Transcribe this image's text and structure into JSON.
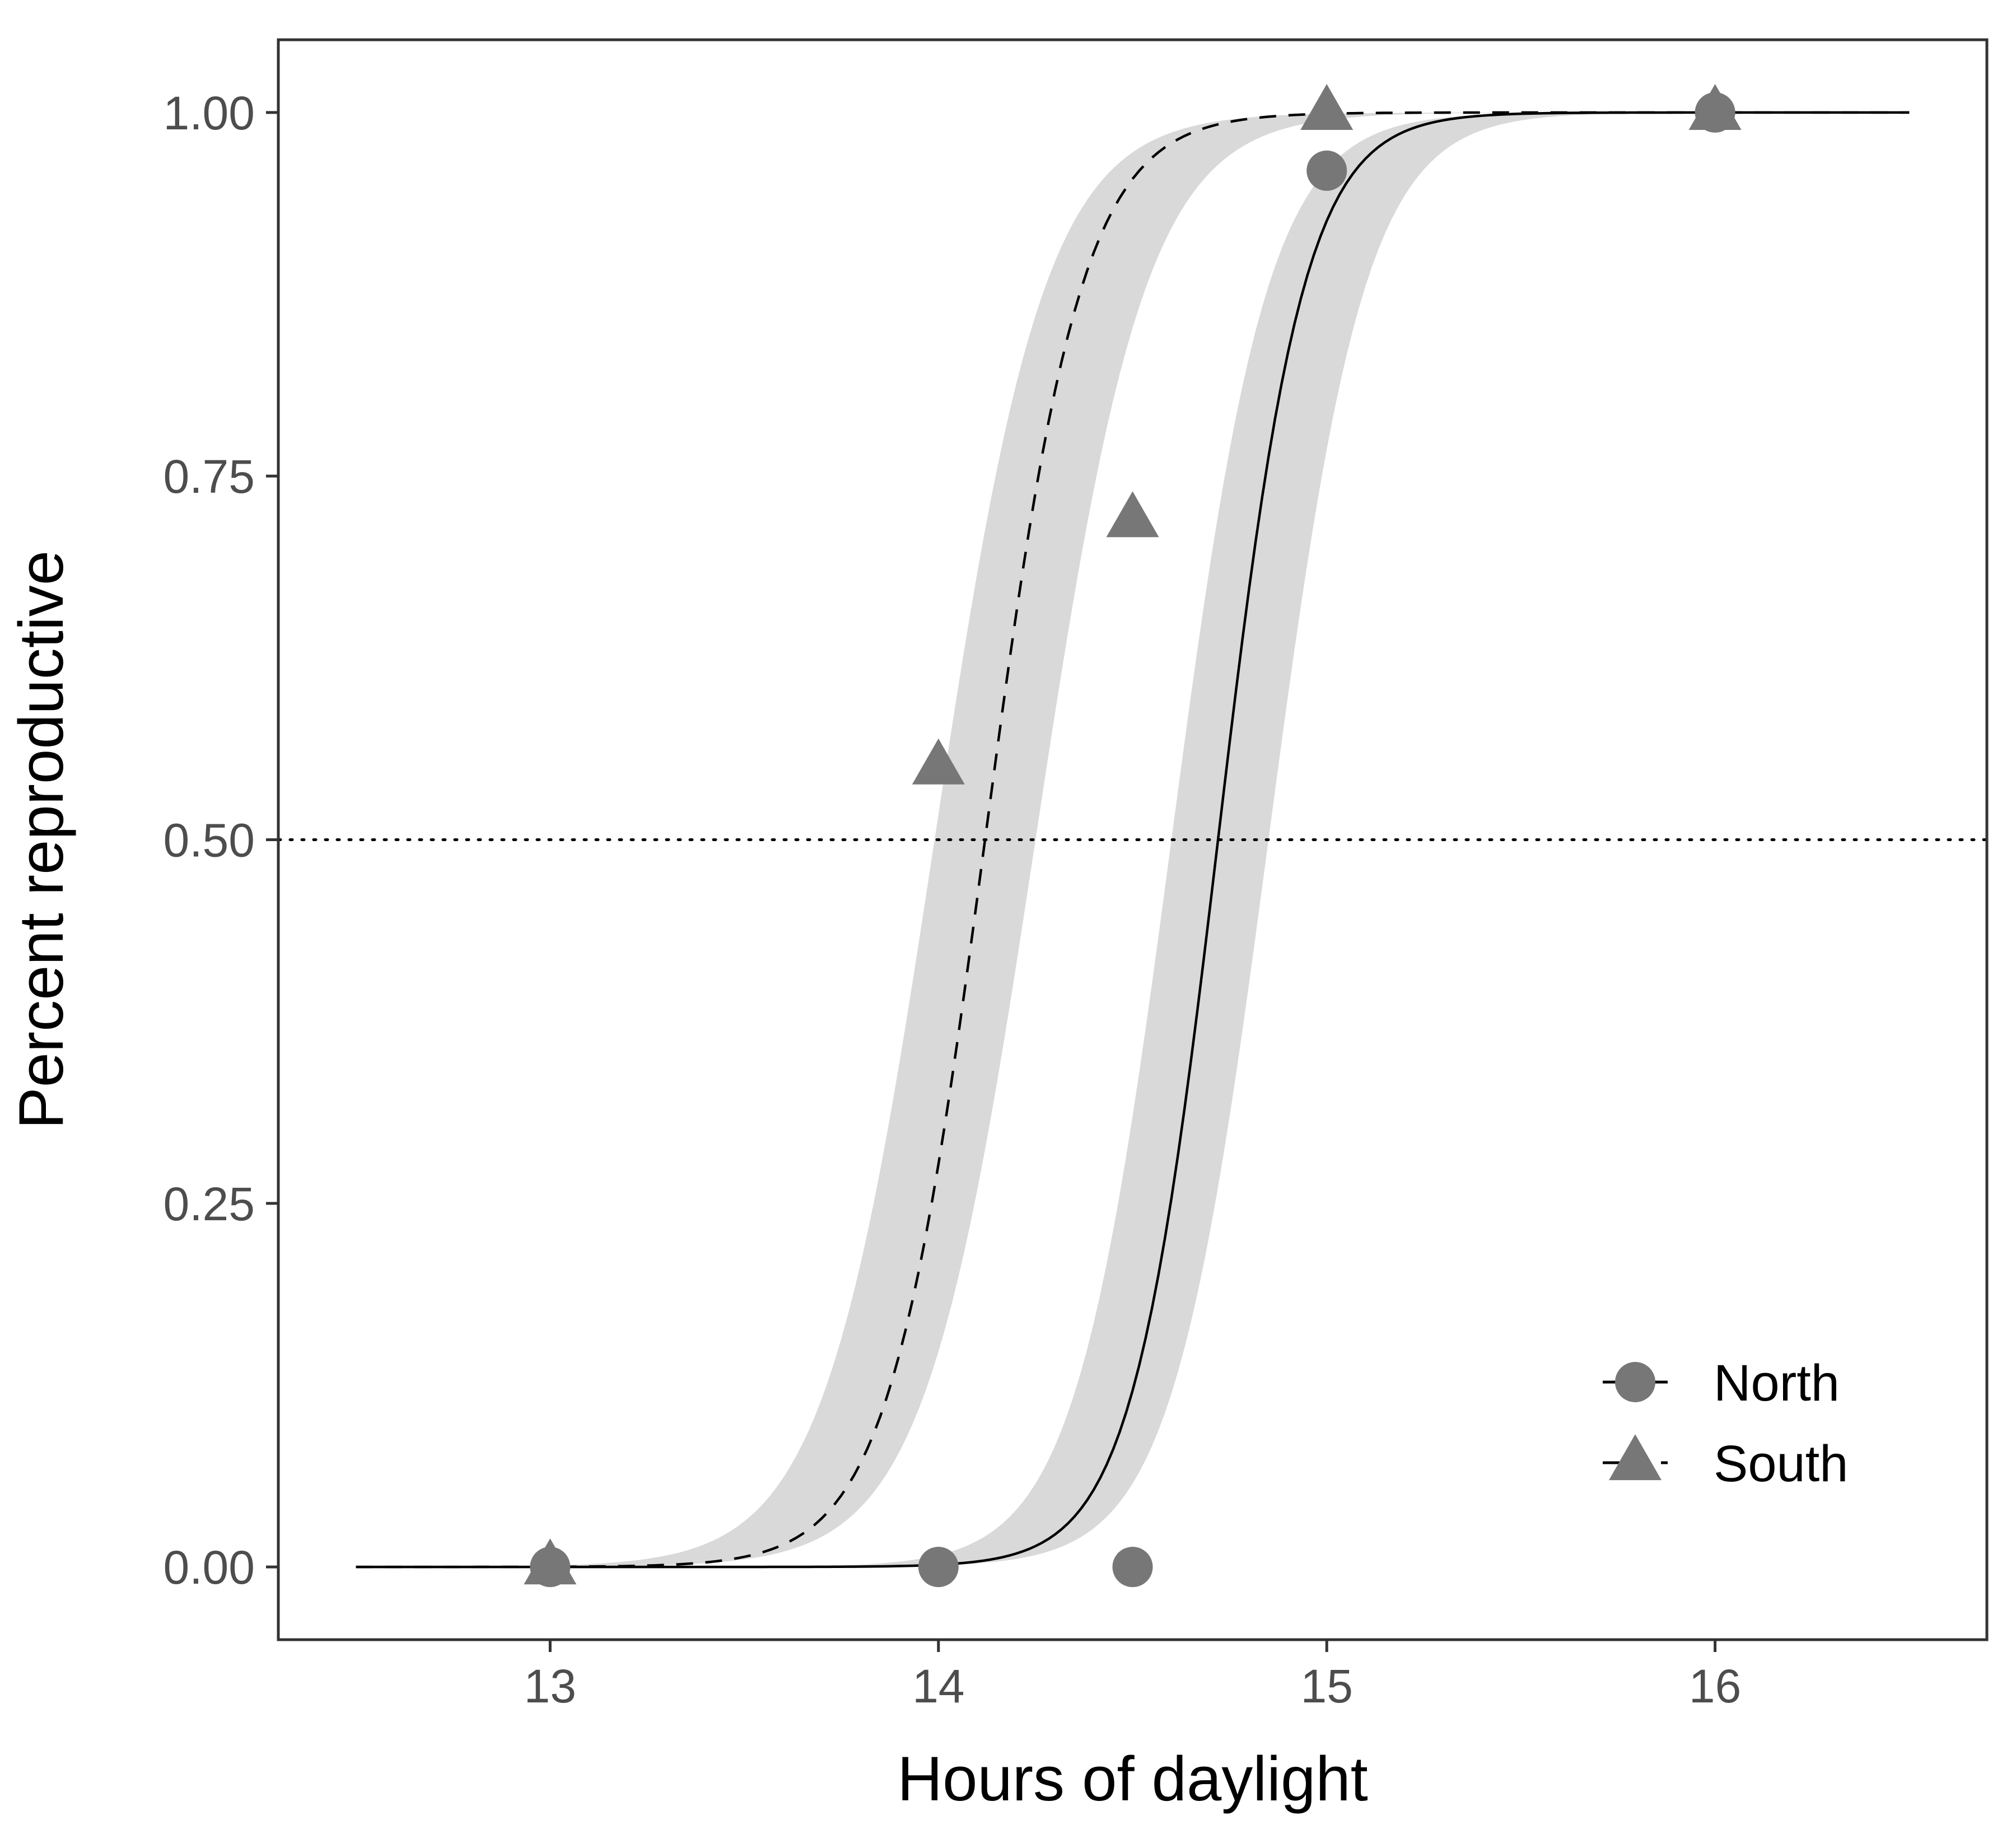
{
  "chart_data": {
    "type": "scatter",
    "title": "",
    "xlabel": "Hours of daylight",
    "ylabel": "Percent reproductive",
    "xlim": [
      12.3,
      16.7
    ],
    "ylim": [
      -0.05,
      1.05
    ],
    "x_ticks": [
      13,
      14,
      15,
      16
    ],
    "x_tick_labels": [
      "13",
      "14",
      "15",
      "16"
    ],
    "y_ticks": [
      0,
      0.25,
      0.5,
      0.75,
      1
    ],
    "y_tick_labels": [
      "0.00",
      "0.25",
      "0.50",
      "0.75",
      "1.00"
    ],
    "grid": false,
    "reference_line": {
      "y": 0.5,
      "style": "dotted"
    },
    "legend_position": "bottom-right",
    "colors": {
      "points": "#777777",
      "ribbon": "#d9d9d9",
      "lines": "#000000",
      "panel_border": "#333333",
      "tick_text": "#4d4d4d"
    },
    "series": [
      {
        "name": "North",
        "marker": "circle",
        "line_style": "solid",
        "points": [
          {
            "x": 13,
            "y": 0
          },
          {
            "x": 14,
            "y": 0
          },
          {
            "x": 14.5,
            "y": 0
          },
          {
            "x": 15,
            "y": 0.96
          },
          {
            "x": 16,
            "y": 1
          }
        ],
        "fit": {
          "model": "logistic",
          "midpoint": 14.72,
          "slope": 9.0,
          "x_range": [
            12.5,
            16.5
          ]
        },
        "ci": {
          "midpoint_low": 14.6,
          "midpoint_high": 14.85,
          "slope": 8.0,
          "x_range": [
            12.5,
            16.5
          ]
        }
      },
      {
        "name": "South",
        "marker": "triangle",
        "line_style": "dashed",
        "points": [
          {
            "x": 13,
            "y": 0
          },
          {
            "x": 14,
            "y": 0.55
          },
          {
            "x": 14.5,
            "y": 0.72
          },
          {
            "x": 15,
            "y": 1
          },
          {
            "x": 16,
            "y": 1
          }
        ],
        "fit": {
          "model": "logistic",
          "midpoint": 14.12,
          "slope": 8.0,
          "x_range": [
            12.5,
            16.5
          ]
        },
        "ci": {
          "midpoint_low": 13.99,
          "midpoint_high": 14.25,
          "slope": 7.0,
          "x_range": [
            12.5,
            16.5
          ]
        }
      }
    ]
  }
}
